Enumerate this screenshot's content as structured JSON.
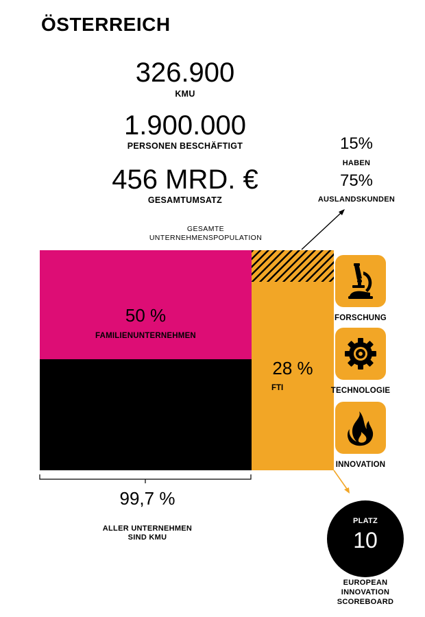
{
  "title": "ÖSTERREICH",
  "stats": {
    "kmu_value": "326.900",
    "kmu_label": "KMU",
    "employed_value": "1.900.000",
    "employed_label": "PERSONEN BESCHÄFTIGT",
    "revenue_value": "456 MRD. €",
    "revenue_label": "GESAMTUMSATZ"
  },
  "foreign": {
    "pct1": "15%",
    "label1": "HABEN",
    "pct2": "75%",
    "label2": "AUSLANDSKUNDEN"
  },
  "population_label_line1": "GESAMTE",
  "population_label_line2": "UNTERNEHMENSPOPULATION",
  "blocks": {
    "family_pct": "50 %",
    "family_label": "FAMILIENUNTERNEHMEN",
    "fti_pct": "28 %",
    "fti_label": "FTI"
  },
  "tiles": [
    {
      "label": "FORSCHUNG",
      "icon": "microscope-icon"
    },
    {
      "label": "TECHNOLOGIE",
      "icon": "gear-icon"
    },
    {
      "label": "INNOVATION",
      "icon": "flame-icon"
    }
  ],
  "bottom": {
    "pct": "99,7 %",
    "label_line1": "ALLER UNTERNEHMEN",
    "label_line2": "SIND KMU"
  },
  "badge": {
    "top": "PLATZ",
    "number": "10",
    "caption_line1": "EUROPEAN",
    "caption_line2": "INNOVATION",
    "caption_line3": "SCOREBOARD"
  },
  "colors": {
    "pink": "#dd0d75",
    "orange": "#f2a626",
    "black": "#000000"
  }
}
